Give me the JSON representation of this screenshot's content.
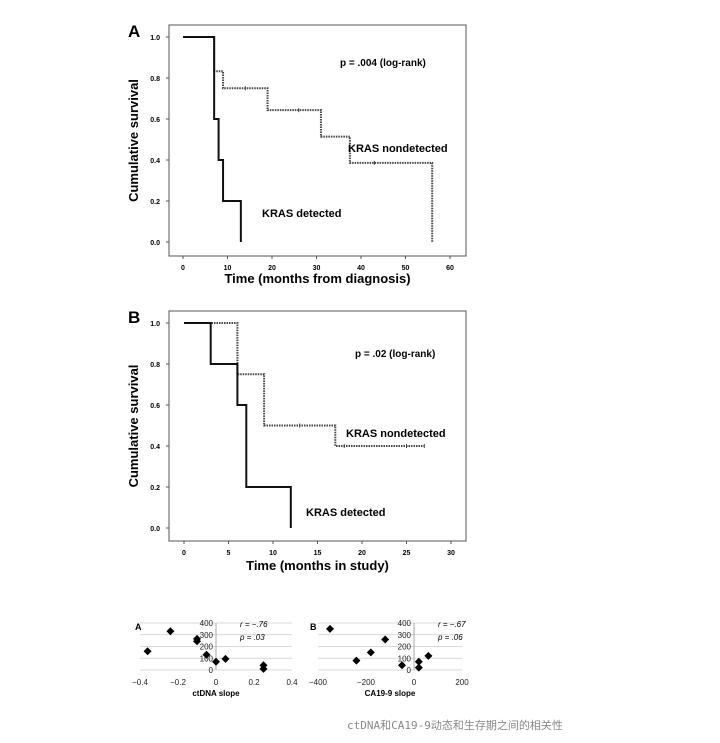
{
  "caption": "ctDNA和CA19-9动态和生存期之间的相关性",
  "chart_data": [
    {
      "type": "line",
      "panel": "A",
      "title": "",
      "xlabel": "Time (months from diagnosis)",
      "ylabel": "Cumulative survival",
      "xlim": [
        0,
        60
      ],
      "ylim": [
        0,
        1
      ],
      "xticks": [
        "0",
        "10",
        "20",
        "30",
        "40",
        "50",
        "60"
      ],
      "yticks": [
        "0.0",
        "0.2",
        "0.4",
        "0.6",
        "0.8",
        "1.0"
      ],
      "annotation": "p = .004 (log-rank)",
      "series": [
        {
          "name": "KRAS detected",
          "style": "solid",
          "steps": [
            [
              0,
              1.0
            ],
            [
              7,
              0.6
            ],
            [
              8,
              0.4
            ],
            [
              9,
              0.2
            ],
            [
              13,
              0.0
            ]
          ],
          "end": 13,
          "censored": []
        },
        {
          "name": "KRAS nondetected",
          "style": "dotted",
          "steps": [
            [
              0,
              1.0
            ],
            [
              7,
              0.833
            ],
            [
              9,
              0.75
            ],
            [
              19,
              0.643
            ],
            [
              31,
              0.514
            ],
            [
              37.5,
              0.386
            ],
            [
              56,
              0.0
            ]
          ],
          "end": 56,
          "censored": [
            14,
            26,
            43
          ]
        }
      ]
    },
    {
      "type": "line",
      "panel": "B",
      "title": "",
      "xlabel": "Time (months in study)",
      "ylabel": "Cumulative survival",
      "xlim": [
        0,
        30
      ],
      "ylim": [
        0,
        1
      ],
      "xticks": [
        "0",
        "5",
        "10",
        "15",
        "20",
        "25",
        "30"
      ],
      "yticks": [
        "0.0",
        "0.2",
        "0.4",
        "0.6",
        "0.8",
        "1.0"
      ],
      "annotation": "p = .02 (log-rank)",
      "series": [
        {
          "name": "KRAS detected",
          "style": "solid",
          "steps": [
            [
              0,
              1.0
            ],
            [
              3,
              0.8
            ],
            [
              6,
              0.6
            ],
            [
              7,
              0.2
            ],
            [
              12,
              0.0
            ]
          ],
          "end": 12,
          "censored": []
        },
        {
          "name": "KRAS nondetected",
          "style": "dotted",
          "steps": [
            [
              0,
              1.0
            ],
            [
              6,
              0.75
            ],
            [
              9,
              0.5
            ],
            [
              17,
              0.4
            ]
          ],
          "end": 27,
          "censored": [
            13,
            18,
            25,
            27
          ]
        }
      ]
    },
    {
      "type": "scatter",
      "panel": "A",
      "xlabel": "ctDNA slope",
      "ylabel": "",
      "xlim": [
        -0.4,
        0.4
      ],
      "ylim": [
        0,
        400
      ],
      "xticks": [
        "−0.4",
        "−0.2",
        "0",
        "0.2",
        "0.4"
      ],
      "yticks": [
        "0",
        "100",
        "200",
        "300",
        "400"
      ],
      "annotation": [
        "r = −.76",
        "p = .03"
      ],
      "points": [
        [
          -0.36,
          160
        ],
        [
          -0.24,
          330
        ],
        [
          -0.1,
          265
        ],
        [
          -0.1,
          245
        ],
        [
          -0.05,
          130
        ],
        [
          0.0,
          70
        ],
        [
          0.05,
          95
        ],
        [
          0.25,
          40
        ],
        [
          0.25,
          10
        ]
      ]
    },
    {
      "type": "scatter",
      "panel": "B",
      "xlabel": "CA19-9 slope",
      "ylabel": "",
      "xlim": [
        -400,
        200
      ],
      "ylim": [
        0,
        400
      ],
      "xticks": [
        "−400",
        "−200",
        "0",
        "200"
      ],
      "yticks": [
        "0",
        "100",
        "200",
        "300",
        "400"
      ],
      "annotation": [
        "r = −.67",
        "p = .06"
      ],
      "points": [
        [
          -350,
          350
        ],
        [
          -240,
          80
        ],
        [
          -180,
          150
        ],
        [
          -120,
          260
        ],
        [
          -50,
          40
        ],
        [
          20,
          70
        ],
        [
          20,
          20
        ],
        [
          60,
          120
        ]
      ]
    }
  ]
}
